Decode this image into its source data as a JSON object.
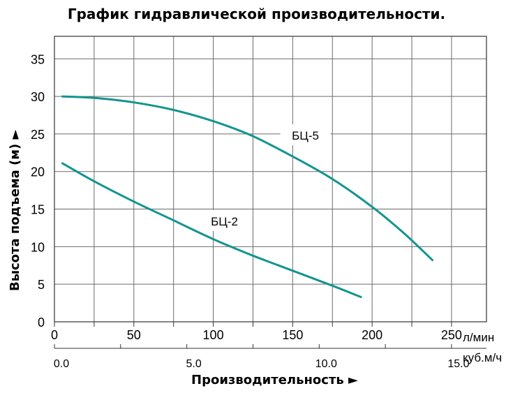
{
  "chart_data": {
    "type": "line",
    "title": "График гидравлической производительности.",
    "xlabel": "Производительность ►",
    "ylabel": "Высота подъема (м) ►",
    "x_unit": "л/мин",
    "x_secondary_unit": "куб.м/ч",
    "xlim": [
      0,
      272
    ],
    "ylim": [
      0,
      38
    ],
    "x_ticks": [
      0,
      50,
      100,
      150,
      200,
      250
    ],
    "x_tick_labels": [
      "0",
      "50",
      "100",
      "150",
      "200",
      "250"
    ],
    "x_secondary_ticks": [
      0.0,
      5.0,
      10.0,
      15.0
    ],
    "x_secondary_tick_labels": [
      "0.0",
      "5.0",
      "10.0",
      "15.0"
    ],
    "y_ticks": [
      0,
      5,
      10,
      15,
      20,
      25,
      30,
      35
    ],
    "y_tick_labels": [
      "0",
      "5",
      "10",
      "15",
      "20",
      "25",
      "30",
      "35"
    ],
    "grid": true,
    "series": [
      {
        "name": "БЦ-5",
        "color": "#13948f",
        "x": [
          5,
          25,
          50,
          75,
          100,
          125,
          150,
          175,
          200,
          220,
          238
        ],
        "y": [
          30.0,
          29.8,
          29.2,
          28.2,
          26.7,
          24.7,
          22.0,
          19.0,
          15.3,
          11.8,
          8.2
        ]
      },
      {
        "name": "БЦ-2",
        "color": "#13948f",
        "x": [
          5,
          25,
          50,
          75,
          100,
          125,
          150,
          175,
          193
        ],
        "y": [
          21.1,
          18.7,
          16.0,
          13.5,
          11.0,
          8.8,
          6.8,
          4.8,
          3.3
        ]
      }
    ]
  }
}
